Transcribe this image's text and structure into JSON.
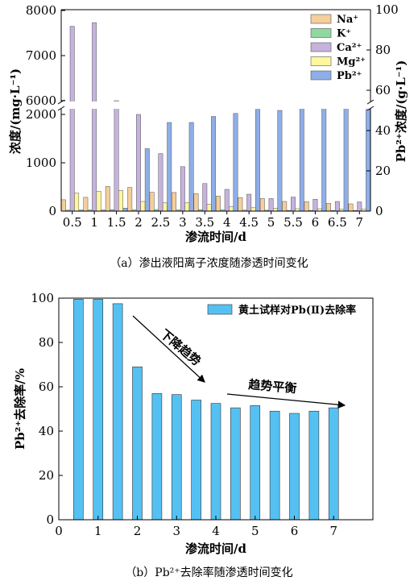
{
  "chart_data": [
    {
      "type": "bar",
      "caption": "（a）渗出液阳离子浓度随渗透时间变化",
      "categories": [
        "0.5",
        "1",
        "1.5",
        "2",
        "2.5",
        "3",
        "3.5",
        "4",
        "4.5",
        "5",
        "5.5",
        "6",
        "6.5",
        "7"
      ],
      "xlabel": "渗流时间/d",
      "ylabel_left": "浓度/(mg·L⁻¹)",
      "ylabel_right": "Pb²⁺浓度/(g·L⁻¹)",
      "left_axis_ranges": [
        [
          0,
          2100
        ],
        [
          6000,
          8000
        ]
      ],
      "left_ticks": [
        0,
        1000,
        2000,
        6000,
        7000,
        8000
      ],
      "right_range": [
        0,
        100
      ],
      "right_ticks": [
        0,
        20,
        40,
        60,
        80,
        100
      ],
      "legend_position": "top-right",
      "series": [
        {
          "name": "Na⁺",
          "axis": "left",
          "color": "#F5CE9B",
          "values": [
            235,
            285,
            510,
            490,
            390,
            385,
            360,
            310,
            280,
            260,
            200,
            195,
            160,
            150
          ]
        },
        {
          "name": "K⁺",
          "axis": "left",
          "color": "#8FD9A0",
          "values": [
            20,
            22,
            30,
            25,
            28,
            24,
            30,
            25,
            20,
            18,
            15,
            15,
            12,
            12
          ]
        },
        {
          "name": "Ca²⁺",
          "axis": "left",
          "color": "#C5B3DD",
          "values": [
            7650,
            7730,
            6000,
            2000,
            1190,
            920,
            570,
            450,
            350,
            260,
            290,
            245,
            200,
            190
          ]
        },
        {
          "name": "Mg²⁺",
          "axis": "left",
          "color": "#FFF79E",
          "values": [
            370,
            410,
            430,
            200,
            170,
            170,
            140,
            90,
            70,
            60,
            50,
            50,
            40,
            40
          ]
        },
        {
          "name": "Pb²⁺",
          "axis": "right",
          "color": "#8EAEE8",
          "values": [
            0.5,
            0.5,
            1.5,
            31,
            44,
            44,
            47,
            48.5,
            50.5,
            50,
            51.5,
            52.5,
            52,
            50.5
          ]
        }
      ],
      "legend": [
        "Na⁺",
        "K⁺",
        "Ca²⁺",
        "Mg²⁺",
        "Pb²⁺"
      ]
    },
    {
      "type": "bar",
      "caption": "（b）Pb²⁺去除率随渗透时间变化",
      "x": [
        0.5,
        1,
        1.5,
        2,
        2.5,
        3,
        3.5,
        4,
        4.5,
        5,
        5.5,
        6,
        6.5,
        7
      ],
      "values": [
        99.5,
        99.5,
        97.5,
        69,
        57,
        56.5,
        54,
        52.5,
        50.5,
        51.5,
        49,
        48,
        49,
        50.5
      ],
      "xlabel": "渗流时间/d",
      "ylabel": "Pb²⁺去除率/%",
      "xlim": [
        0,
        8
      ],
      "ylim": [
        0,
        100
      ],
      "xticks": [
        0,
        1,
        2,
        3,
        4,
        5,
        6,
        7
      ],
      "yticks": [
        0,
        20,
        40,
        60,
        80,
        100
      ],
      "legend": "黄土试样对Pb(Ⅱ)去除率",
      "legend_position": "top-right",
      "color": "#55C1F3",
      "annotations": [
        "下降趋势",
        "趋势平衡"
      ]
    }
  ]
}
